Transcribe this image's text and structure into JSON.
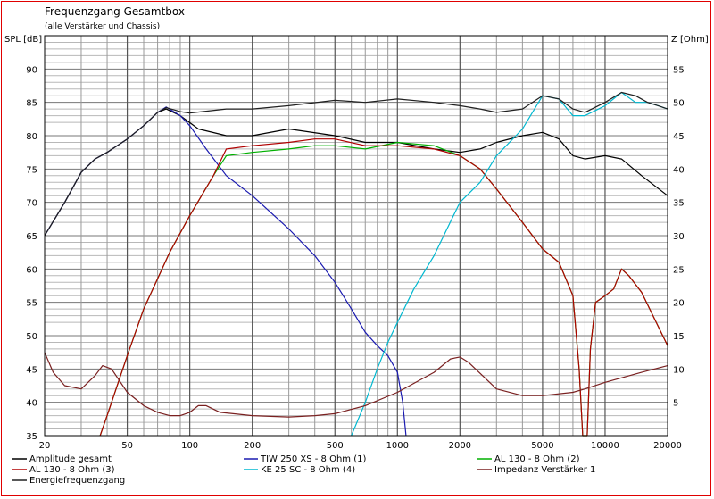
{
  "chart_data": {
    "type": "line",
    "title": "Frequenzgang Gesamtbox",
    "subtitle": "(alle Verstärker und Chassis)",
    "ylabel": "SPL [dB]",
    "y2label": "Z [Ohm]",
    "xscale": "log",
    "xlim": [
      20,
      20000
    ],
    "ylim": [
      35,
      95
    ],
    "y2lim": [
      0,
      60
    ],
    "grid": true,
    "x_ticks": [
      20,
      50,
      100,
      200,
      500,
      1000,
      2000,
      5000,
      10000,
      20000
    ],
    "x_tick_labels": [
      "20",
      "50",
      "100",
      "200",
      "500",
      "1000",
      "2000",
      "5000",
      "10000",
      "20000"
    ],
    "y_ticks": [
      35,
      40,
      45,
      50,
      55,
      60,
      65,
      70,
      75,
      80,
      85,
      90
    ],
    "y2_ticks": [
      5,
      10,
      15,
      20,
      25,
      30,
      35,
      40,
      45,
      50,
      55
    ],
    "legend_position": "bottom",
    "series": [
      {
        "name": "Amplitude gesamt",
        "color": "#000000",
        "axis": "left",
        "points": [
          [
            20,
            65
          ],
          [
            25,
            70
          ],
          [
            30,
            74.5
          ],
          [
            35,
            76.5
          ],
          [
            40,
            77.5
          ],
          [
            50,
            79.5
          ],
          [
            60,
            81.5
          ],
          [
            70,
            83.5
          ],
          [
            77,
            84
          ],
          [
            90,
            83
          ],
          [
            110,
            81
          ],
          [
            150,
            80
          ],
          [
            200,
            80
          ],
          [
            300,
            81
          ],
          [
            500,
            80
          ],
          [
            700,
            79
          ],
          [
            1000,
            79
          ],
          [
            1500,
            78
          ],
          [
            2000,
            77.5
          ],
          [
            2500,
            78
          ],
          [
            3000,
            79
          ],
          [
            4000,
            80
          ],
          [
            5000,
            80.5
          ],
          [
            6000,
            79.5
          ],
          [
            7000,
            77
          ],
          [
            8000,
            76.5
          ],
          [
            10000,
            77
          ],
          [
            12000,
            76.5
          ],
          [
            15000,
            74
          ],
          [
            20000,
            71
          ]
        ]
      },
      {
        "name": "TIW 250 XS - 8 Ohm (1)",
        "color": "#1a1ab0",
        "axis": "left",
        "points": [
          [
            20,
            65
          ],
          [
            25,
            70
          ],
          [
            30,
            74.5
          ],
          [
            35,
            76.5
          ],
          [
            40,
            77.5
          ],
          [
            50,
            79.5
          ],
          [
            60,
            81.5
          ],
          [
            70,
            83.5
          ],
          [
            77,
            84.3
          ],
          [
            90,
            83
          ],
          [
            100,
            81.5
          ],
          [
            120,
            78
          ],
          [
            150,
            74
          ],
          [
            200,
            71
          ],
          [
            300,
            66
          ],
          [
            400,
            62
          ],
          [
            500,
            58
          ],
          [
            600,
            54
          ],
          [
            700,
            50.5
          ],
          [
            800,
            48.5
          ],
          [
            900,
            47
          ],
          [
            1000,
            44.5
          ],
          [
            1060,
            40
          ],
          [
            1100,
            35
          ]
        ]
      },
      {
        "name": "AL 130 - 8 Ohm (2)",
        "color": "#00b000",
        "axis": "left",
        "points": [
          [
            37,
            35
          ],
          [
            40,
            38
          ],
          [
            50,
            47
          ],
          [
            60,
            54
          ],
          [
            80,
            62.5
          ],
          [
            100,
            68
          ],
          [
            130,
            74
          ],
          [
            150,
            77
          ],
          [
            200,
            77.5
          ],
          [
            300,
            78
          ],
          [
            400,
            78.5
          ],
          [
            500,
            78.5
          ],
          [
            700,
            78
          ],
          [
            1000,
            79
          ],
          [
            1500,
            78.5
          ],
          [
            2000,
            77
          ],
          [
            2500,
            75
          ],
          [
            3000,
            72
          ],
          [
            4000,
            67
          ],
          [
            5000,
            63
          ],
          [
            6000,
            61
          ],
          [
            7000,
            56
          ],
          [
            7500,
            45
          ],
          [
            7800,
            35
          ],
          [
            8200,
            35
          ],
          [
            8500,
            48
          ],
          [
            9000,
            55
          ],
          [
            10000,
            56
          ],
          [
            11000,
            57
          ],
          [
            12000,
            60
          ],
          [
            13000,
            59
          ],
          [
            15000,
            56.5
          ],
          [
            17000,
            53
          ],
          [
            20000,
            48.5
          ]
        ]
      },
      {
        "name": "AL 130 - 8 Ohm (3)",
        "color": "#b00000",
        "axis": "left",
        "points": [
          [
            37,
            35
          ],
          [
            40,
            38
          ],
          [
            50,
            47
          ],
          [
            60,
            54
          ],
          [
            80,
            62.5
          ],
          [
            100,
            68
          ],
          [
            130,
            74
          ],
          [
            150,
            78
          ],
          [
            200,
            78.5
          ],
          [
            300,
            79
          ],
          [
            400,
            79.5
          ],
          [
            500,
            79.5
          ],
          [
            700,
            78.5
          ],
          [
            1000,
            78.5
          ],
          [
            1500,
            78
          ],
          [
            2000,
            77
          ],
          [
            2500,
            75
          ],
          [
            3000,
            72
          ],
          [
            4000,
            67
          ],
          [
            5000,
            63
          ],
          [
            6000,
            61
          ],
          [
            7000,
            56
          ],
          [
            7500,
            45
          ],
          [
            7800,
            35
          ],
          [
            8200,
            35
          ],
          [
            8500,
            48
          ],
          [
            9000,
            55
          ],
          [
            10000,
            56
          ],
          [
            11000,
            57
          ],
          [
            12000,
            60
          ],
          [
            13000,
            59
          ],
          [
            15000,
            56.5
          ],
          [
            17000,
            53
          ],
          [
            20000,
            48.5
          ]
        ]
      },
      {
        "name": "KE 25 SC - 8 Ohm    (4)",
        "color": "#00b8d0",
        "axis": "left",
        "points": [
          [
            600,
            35
          ],
          [
            700,
            40
          ],
          [
            800,
            45
          ],
          [
            900,
            49
          ],
          [
            1000,
            52
          ],
          [
            1200,
            57
          ],
          [
            1500,
            62
          ],
          [
            2000,
            70
          ],
          [
            2500,
            73
          ],
          [
            3000,
            77
          ],
          [
            4000,
            81
          ],
          [
            5000,
            86
          ],
          [
            6000,
            85.5
          ],
          [
            7000,
            83
          ],
          [
            8000,
            83
          ],
          [
            10000,
            84.5
          ],
          [
            12000,
            86.5
          ],
          [
            14000,
            85
          ],
          [
            16000,
            85
          ],
          [
            18000,
            84.5
          ],
          [
            20000,
            84
          ]
        ]
      },
      {
        "name": "Impedanz Verstärker 1",
        "color": "#7a2020",
        "axis": "right",
        "points": [
          [
            20,
            12.5
          ],
          [
            22,
            9.5
          ],
          [
            25,
            7.5
          ],
          [
            30,
            7
          ],
          [
            35,
            9
          ],
          [
            38,
            10.5
          ],
          [
            42,
            10
          ],
          [
            50,
            6.5
          ],
          [
            60,
            4.5
          ],
          [
            70,
            3.5
          ],
          [
            80,
            3
          ],
          [
            90,
            3
          ],
          [
            100,
            3.5
          ],
          [
            110,
            4.5
          ],
          [
            120,
            4.5
          ],
          [
            140,
            3.5
          ],
          [
            200,
            3
          ],
          [
            300,
            2.8
          ],
          [
            400,
            3
          ],
          [
            500,
            3.3
          ],
          [
            700,
            4.5
          ],
          [
            1000,
            6.5
          ],
          [
            1500,
            9.5
          ],
          [
            1800,
            11.5
          ],
          [
            2000,
            11.8
          ],
          [
            2200,
            11
          ],
          [
            3000,
            7
          ],
          [
            4000,
            6
          ],
          [
            5000,
            6
          ],
          [
            7000,
            6.5
          ],
          [
            8000,
            7
          ],
          [
            10000,
            8
          ],
          [
            15000,
            9.5
          ],
          [
            20000,
            10.5
          ]
        ]
      },
      {
        "name": "Energiefrequenzgang",
        "color": "#202020",
        "axis": "left",
        "points": [
          [
            20,
            65
          ],
          [
            25,
            70
          ],
          [
            30,
            74.5
          ],
          [
            35,
            76.5
          ],
          [
            40,
            77.5
          ],
          [
            50,
            79.5
          ],
          [
            60,
            81.5
          ],
          [
            70,
            83.5
          ],
          [
            77,
            84.2
          ],
          [
            90,
            83.6
          ],
          [
            100,
            83.4
          ],
          [
            150,
            84
          ],
          [
            200,
            84
          ],
          [
            300,
            84.5
          ],
          [
            500,
            85.3
          ],
          [
            700,
            85
          ],
          [
            1000,
            85.5
          ],
          [
            1500,
            85
          ],
          [
            2000,
            84.5
          ],
          [
            2500,
            84
          ],
          [
            3000,
            83.5
          ],
          [
            4000,
            84
          ],
          [
            5000,
            86
          ],
          [
            6000,
            85.5
          ],
          [
            7000,
            84
          ],
          [
            8000,
            83.5
          ],
          [
            10000,
            85
          ],
          [
            12000,
            86.5
          ],
          [
            14000,
            86
          ],
          [
            16000,
            85
          ],
          [
            18000,
            84.5
          ],
          [
            20000,
            84
          ]
        ]
      }
    ]
  }
}
